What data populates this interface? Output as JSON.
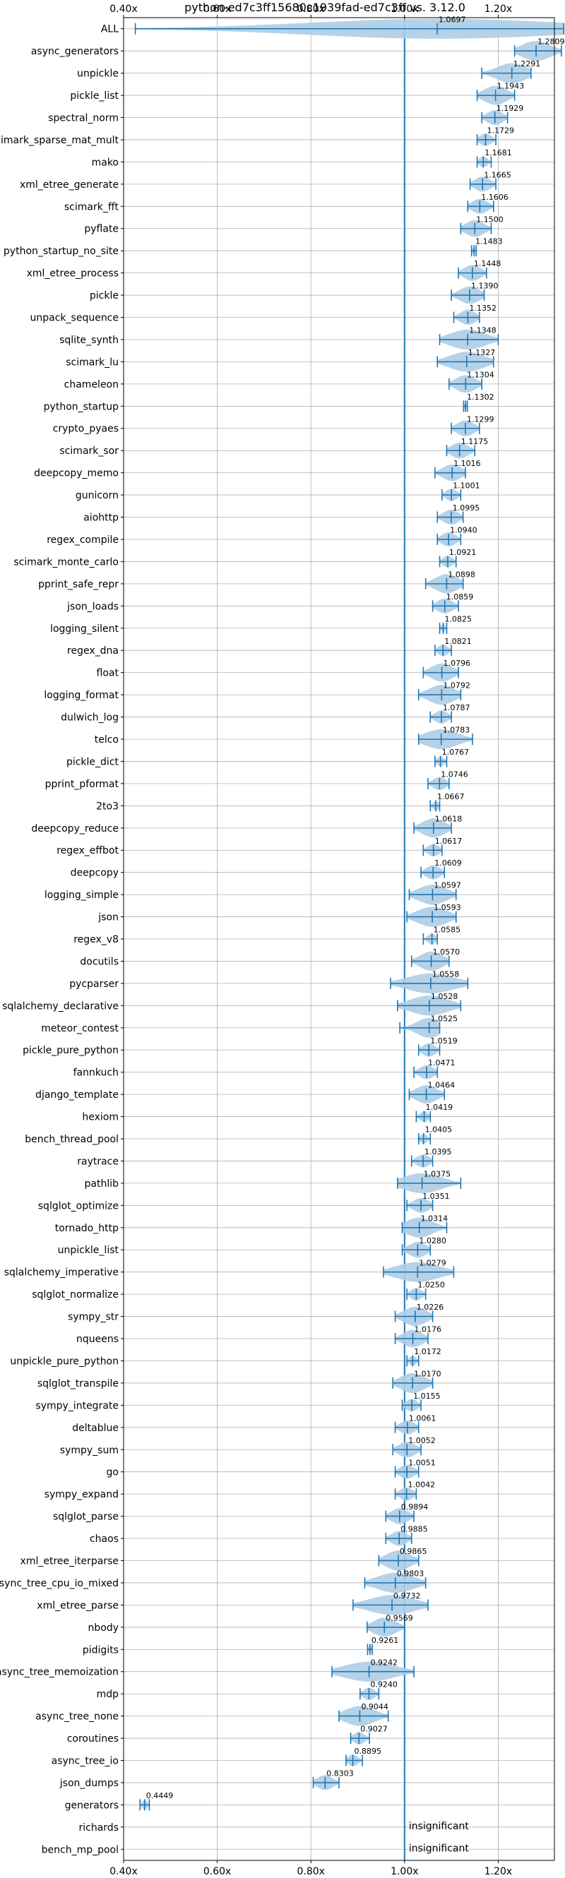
{
  "chart_data": {
    "type": "violin",
    "title": "python-ed7c3ff15680c1939fad-ed7c3ff vs. 3.12.0",
    "xlabel": "",
    "ylabel": "",
    "xlim": [
      0.4,
      1.32
    ],
    "x_ticks": [
      0.4,
      0.6,
      0.8,
      1.0,
      1.2
    ],
    "x_tick_labels": [
      "0.40x",
      "0.60x",
      "0.80x",
      "1.00x",
      "1.20x"
    ],
    "reference_line": 1.0,
    "grid": true,
    "color": "#1f77b4",
    "violin_color": "#aecde6",
    "benchmarks": [
      {
        "name": "ALL",
        "label": "1.0697",
        "value": 1.0697,
        "min": 0.425,
        "max": 1.34
      },
      {
        "name": "async_generators",
        "label": "1.2809",
        "value": 1.2809,
        "min": 1.235,
        "max": 1.335
      },
      {
        "name": "unpickle",
        "label": "1.2291",
        "value": 1.2291,
        "min": 1.165,
        "max": 1.27
      },
      {
        "name": "pickle_list",
        "label": "1.1943",
        "value": 1.1943,
        "min": 1.155,
        "max": 1.235
      },
      {
        "name": "spectral_norm",
        "label": "1.1929",
        "value": 1.1929,
        "min": 1.165,
        "max": 1.22
      },
      {
        "name": "scimark_sparse_mat_mult",
        "label": "1.1729",
        "value": 1.1729,
        "min": 1.155,
        "max": 1.195
      },
      {
        "name": "mako",
        "label": "1.1681",
        "value": 1.1681,
        "min": 1.155,
        "max": 1.185
      },
      {
        "name": "xml_etree_generate",
        "label": "1.1665",
        "value": 1.1665,
        "min": 1.14,
        "max": 1.195
      },
      {
        "name": "scimark_fft",
        "label": "1.1606",
        "value": 1.1606,
        "min": 1.135,
        "max": 1.19
      },
      {
        "name": "pyflate",
        "label": "1.1500",
        "value": 1.15,
        "min": 1.12,
        "max": 1.185
      },
      {
        "name": "python_startup_no_site",
        "label": "1.1483",
        "value": 1.1483,
        "min": 1.143,
        "max": 1.153
      },
      {
        "name": "xml_etree_process",
        "label": "1.1448",
        "value": 1.1448,
        "min": 1.115,
        "max": 1.175
      },
      {
        "name": "pickle",
        "label": "1.1390",
        "value": 1.139,
        "min": 1.1,
        "max": 1.17
      },
      {
        "name": "unpack_sequence",
        "label": "1.1352",
        "value": 1.1352,
        "min": 1.105,
        "max": 1.16
      },
      {
        "name": "sqlite_synth",
        "label": "1.1348",
        "value": 1.1348,
        "min": 1.075,
        "max": 1.2
      },
      {
        "name": "scimark_lu",
        "label": "1.1327",
        "value": 1.1327,
        "min": 1.07,
        "max": 1.19
      },
      {
        "name": "chameleon",
        "label": "1.1304",
        "value": 1.1304,
        "min": 1.095,
        "max": 1.165
      },
      {
        "name": "python_startup",
        "label": "1.1302",
        "value": 1.1302,
        "min": 1.126,
        "max": 1.134
      },
      {
        "name": "crypto_pyaes",
        "label": "1.1299",
        "value": 1.1299,
        "min": 1.1,
        "max": 1.16
      },
      {
        "name": "scimark_sor",
        "label": "1.1175",
        "value": 1.1175,
        "min": 1.09,
        "max": 1.15
      },
      {
        "name": "deepcopy_memo",
        "label": "1.1016",
        "value": 1.1016,
        "min": 1.065,
        "max": 1.13
      },
      {
        "name": "gunicorn",
        "label": "1.1001",
        "value": 1.1001,
        "min": 1.08,
        "max": 1.12
      },
      {
        "name": "aiohttp",
        "label": "1.0995",
        "value": 1.0995,
        "min": 1.07,
        "max": 1.125
      },
      {
        "name": "regex_compile",
        "label": "1.0940",
        "value": 1.094,
        "min": 1.07,
        "max": 1.12
      },
      {
        "name": "scimark_monte_carlo",
        "label": "1.0921",
        "value": 1.0921,
        "min": 1.075,
        "max": 1.11
      },
      {
        "name": "pprint_safe_repr",
        "label": "1.0898",
        "value": 1.0898,
        "min": 1.045,
        "max": 1.125
      },
      {
        "name": "json_loads",
        "label": "1.0859",
        "value": 1.0859,
        "min": 1.06,
        "max": 1.115
      },
      {
        "name": "logging_silent",
        "label": "1.0825",
        "value": 1.0825,
        "min": 1.075,
        "max": 1.09
      },
      {
        "name": "regex_dna",
        "label": "1.0821",
        "value": 1.0821,
        "min": 1.065,
        "max": 1.1
      },
      {
        "name": "float",
        "label": "1.0796",
        "value": 1.0796,
        "min": 1.04,
        "max": 1.115
      },
      {
        "name": "logging_format",
        "label": "1.0792",
        "value": 1.0792,
        "min": 1.03,
        "max": 1.12
      },
      {
        "name": "dulwich_log",
        "label": "1.0787",
        "value": 1.0787,
        "min": 1.055,
        "max": 1.1
      },
      {
        "name": "telco",
        "label": "1.0783",
        "value": 1.0783,
        "min": 1.03,
        "max": 1.145
      },
      {
        "name": "pickle_dict",
        "label": "1.0767",
        "value": 1.0767,
        "min": 1.065,
        "max": 1.09
      },
      {
        "name": "pprint_pformat",
        "label": "1.0746",
        "value": 1.0746,
        "min": 1.05,
        "max": 1.095
      },
      {
        "name": "2to3",
        "label": "1.0667",
        "value": 1.0667,
        "min": 1.055,
        "max": 1.075
      },
      {
        "name": "deepcopy_reduce",
        "label": "1.0618",
        "value": 1.0618,
        "min": 1.02,
        "max": 1.1
      },
      {
        "name": "regex_effbot",
        "label": "1.0617",
        "value": 1.0617,
        "min": 1.04,
        "max": 1.08
      },
      {
        "name": "deepcopy",
        "label": "1.0609",
        "value": 1.0609,
        "min": 1.035,
        "max": 1.085
      },
      {
        "name": "logging_simple",
        "label": "1.0597",
        "value": 1.0597,
        "min": 1.01,
        "max": 1.11
      },
      {
        "name": "json",
        "label": "1.0593",
        "value": 1.0593,
        "min": 1.005,
        "max": 1.11
      },
      {
        "name": "regex_v8",
        "label": "1.0585",
        "value": 1.0585,
        "min": 1.04,
        "max": 1.07
      },
      {
        "name": "docutils",
        "label": "1.0570",
        "value": 1.057,
        "min": 1.015,
        "max": 1.095
      },
      {
        "name": "pycparser",
        "label": "1.0558",
        "value": 1.0558,
        "min": 0.97,
        "max": 1.135
      },
      {
        "name": "sqlalchemy_declarative",
        "label": "1.0528",
        "value": 1.0528,
        "min": 0.985,
        "max": 1.12
      },
      {
        "name": "meteor_contest",
        "label": "1.0525",
        "value": 1.0525,
        "min": 0.99,
        "max": 1.075
      },
      {
        "name": "pickle_pure_python",
        "label": "1.0519",
        "value": 1.0519,
        "min": 1.03,
        "max": 1.075
      },
      {
        "name": "fannkuch",
        "label": "1.0471",
        "value": 1.0471,
        "min": 1.02,
        "max": 1.07
      },
      {
        "name": "django_template",
        "label": "1.0464",
        "value": 1.0464,
        "min": 1.01,
        "max": 1.085
      },
      {
        "name": "hexiom",
        "label": "1.0419",
        "value": 1.0419,
        "min": 1.025,
        "max": 1.055
      },
      {
        "name": "bench_thread_pool",
        "label": "1.0405",
        "value": 1.0405,
        "min": 1.03,
        "max": 1.055
      },
      {
        "name": "raytrace",
        "label": "1.0395",
        "value": 1.0395,
        "min": 1.015,
        "max": 1.06
      },
      {
        "name": "pathlib",
        "label": "1.0375",
        "value": 1.0375,
        "min": 0.985,
        "max": 1.12
      },
      {
        "name": "sqlglot_optimize",
        "label": "1.0351",
        "value": 1.0351,
        "min": 1.005,
        "max": 1.06
      },
      {
        "name": "tornado_http",
        "label": "1.0314",
        "value": 1.0314,
        "min": 0.995,
        "max": 1.09
      },
      {
        "name": "unpickle_list",
        "label": "1.0280",
        "value": 1.028,
        "min": 0.995,
        "max": 1.055
      },
      {
        "name": "sqlalchemy_imperative",
        "label": "1.0279",
        "value": 1.0279,
        "min": 0.955,
        "max": 1.105
      },
      {
        "name": "sqlglot_normalize",
        "label": "1.0250",
        "value": 1.025,
        "min": 1.005,
        "max": 1.045
      },
      {
        "name": "sympy_str",
        "label": "1.0226",
        "value": 1.0226,
        "min": 0.98,
        "max": 1.06
      },
      {
        "name": "nqueens",
        "label": "1.0176",
        "value": 1.0176,
        "min": 0.98,
        "max": 1.05
      },
      {
        "name": "unpickle_pure_python",
        "label": "1.0172",
        "value": 1.0172,
        "min": 1.005,
        "max": 1.03
      },
      {
        "name": "sqlglot_transpile",
        "label": "1.0170",
        "value": 1.017,
        "min": 0.975,
        "max": 1.06
      },
      {
        "name": "sympy_integrate",
        "label": "1.0155",
        "value": 1.0155,
        "min": 0.995,
        "max": 1.035
      },
      {
        "name": "deltablue",
        "label": "1.0061",
        "value": 1.0061,
        "min": 0.98,
        "max": 1.03
      },
      {
        "name": "sympy_sum",
        "label": "1.0052",
        "value": 1.0052,
        "min": 0.975,
        "max": 1.035
      },
      {
        "name": "go",
        "label": "1.0051",
        "value": 1.0051,
        "min": 0.98,
        "max": 1.03
      },
      {
        "name": "sympy_expand",
        "label": "1.0042",
        "value": 1.0042,
        "min": 0.98,
        "max": 1.025
      },
      {
        "name": "sqlglot_parse",
        "label": "0.9894",
        "value": 0.9894,
        "min": 0.96,
        "max": 1.02
      },
      {
        "name": "chaos",
        "label": "0.9885",
        "value": 0.9885,
        "min": 0.96,
        "max": 1.015
      },
      {
        "name": "xml_etree_iterparse",
        "label": "0.9865",
        "value": 0.9865,
        "min": 0.945,
        "max": 1.03
      },
      {
        "name": "async_tree_cpu_io_mixed",
        "label": "0.9803",
        "value": 0.9803,
        "min": 0.915,
        "max": 1.045
      },
      {
        "name": "xml_etree_parse",
        "label": "0.9732",
        "value": 0.9732,
        "min": 0.89,
        "max": 1.05
      },
      {
        "name": "nbody",
        "label": "0.9569",
        "value": 0.9569,
        "min": 0.92,
        "max": 1.0
      },
      {
        "name": "pidigits",
        "label": "0.9261",
        "value": 0.9261,
        "min": 0.921,
        "max": 0.931
      },
      {
        "name": "async_tree_memoization",
        "label": "0.9242",
        "value": 0.9242,
        "min": 0.845,
        "max": 1.02
      },
      {
        "name": "mdp",
        "label": "0.9240",
        "value": 0.924,
        "min": 0.905,
        "max": 0.945
      },
      {
        "name": "async_tree_none",
        "label": "0.9044",
        "value": 0.9044,
        "min": 0.86,
        "max": 0.965
      },
      {
        "name": "coroutines",
        "label": "0.9027",
        "value": 0.9027,
        "min": 0.885,
        "max": 0.925
      },
      {
        "name": "async_tree_io",
        "label": "0.8895",
        "value": 0.8895,
        "min": 0.875,
        "max": 0.91
      },
      {
        "name": "json_dumps",
        "label": "0.8303",
        "value": 0.8303,
        "min": 0.805,
        "max": 0.86
      },
      {
        "name": "generators",
        "label": "0.4449",
        "value": 0.4449,
        "min": 0.435,
        "max": 0.455
      },
      {
        "name": "richards",
        "label": "insignificant",
        "value": null,
        "min": null,
        "max": null
      },
      {
        "name": "bench_mp_pool",
        "label": "insignificant",
        "value": null,
        "min": null,
        "max": null
      }
    ]
  }
}
